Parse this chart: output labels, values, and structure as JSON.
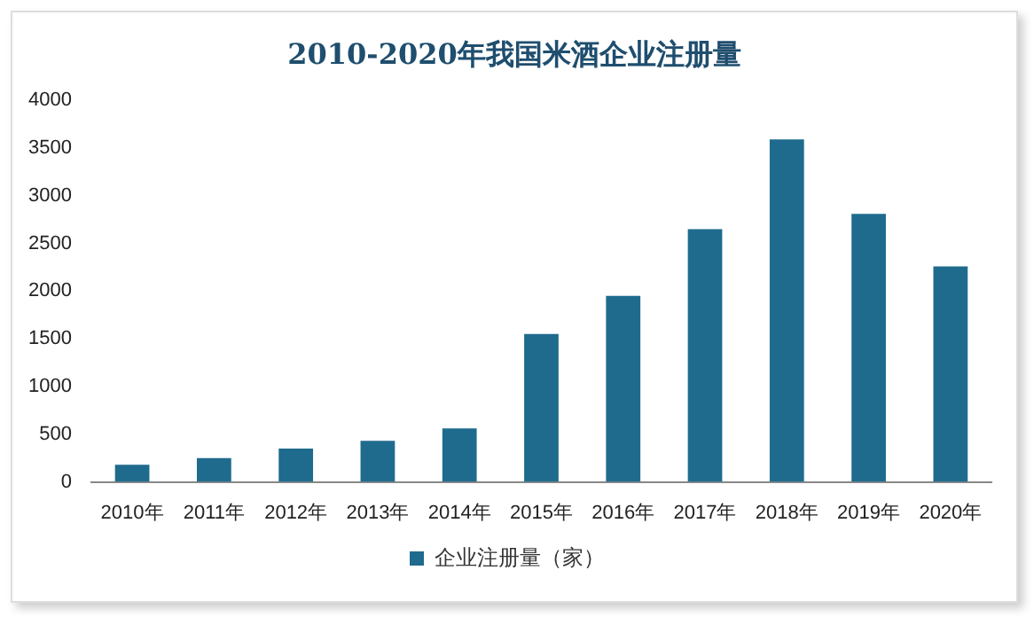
{
  "chart_data": {
    "type": "bar",
    "title": "2010-2020年我国米酒企业注册量",
    "categories": [
      "2010年",
      "2011年",
      "2012年",
      "2013年",
      "2014年",
      "2015年",
      "2016年",
      "2017年",
      "2018年",
      "2019年",
      "2020年"
    ],
    "series": [
      {
        "name": "企业注册量（家）",
        "color": "#1f6b8e",
        "values": [
          180,
          250,
          350,
          430,
          560,
          1550,
          1950,
          2650,
          3590,
          2810,
          2260
        ]
      }
    ],
    "ylim": [
      0,
      4000
    ],
    "yticks": [
      0,
      500,
      1000,
      1500,
      2000,
      2500,
      3000,
      3500,
      4000
    ],
    "grid": false,
    "legend": "bottom"
  }
}
